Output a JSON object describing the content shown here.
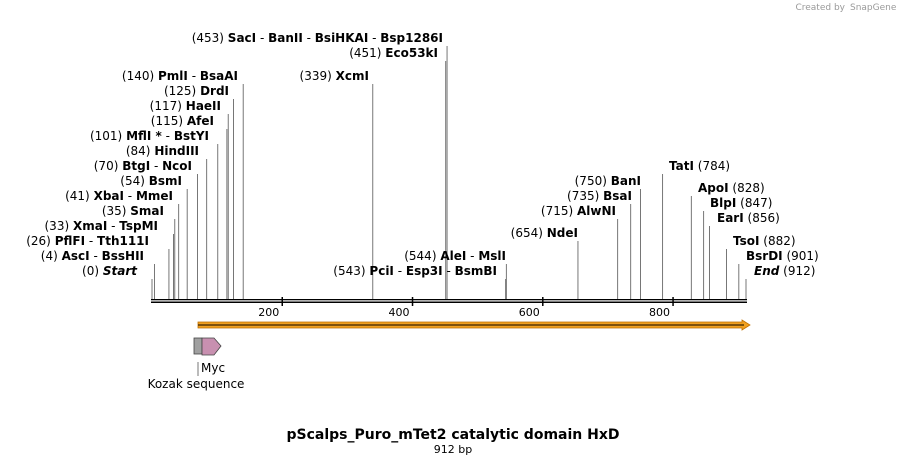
{
  "credit": {
    "prefix": "Created by",
    "brand": "SnapGene"
  },
  "map": {
    "length": 912,
    "title": "pScalps_Puro_mTet2 catalytic domain HxD",
    "length_label": "912 bp",
    "axis_ticks": [
      200,
      400,
      600,
      800
    ]
  },
  "sites": [
    {
      "id": "start",
      "pos": 0,
      "pos_label": "(0)",
      "names": [
        "Start"
      ],
      "italic": true,
      "line_at": 0
    },
    {
      "id": "ascI",
      "pos": 4,
      "pos_label": "(4)",
      "names": [
        "AscI",
        "BssHII"
      ],
      "line_at": 4
    },
    {
      "id": "pflfI",
      "pos": 26,
      "pos_label": "(26)",
      "names": [
        "PflFI",
        "Tth111I"
      ],
      "line_at": 26
    },
    {
      "id": "xmaI",
      "pos": 33,
      "pos_label": "(33)",
      "names": [
        "XmaI",
        "TspMI"
      ],
      "line_at": 33
    },
    {
      "id": "smaI",
      "pos": 35,
      "pos_label": "(35)",
      "names": [
        "SmaI"
      ],
      "line_at": 35
    },
    {
      "id": "xbaI",
      "pos": 41,
      "pos_label": "(41)",
      "names": [
        "XbaI",
        "MmeI"
      ],
      "line_at": 41
    },
    {
      "id": "bsmI",
      "pos": 54,
      "pos_label": "(54)",
      "names": [
        "BsmI"
      ],
      "line_at": 54
    },
    {
      "id": "btgI",
      "pos": 70,
      "pos_label": "(70)",
      "names": [
        "BtgI",
        "NcoI"
      ],
      "line_at": 70
    },
    {
      "id": "hindIII",
      "pos": 84,
      "pos_label": "(84)",
      "names": [
        "HindIII"
      ],
      "line_at": 84
    },
    {
      "id": "mflI",
      "pos": 101,
      "pos_label": "(101)",
      "names": [
        "MflI *",
        "BstYI"
      ],
      "line_at": 101
    },
    {
      "id": "afeI",
      "pos": 115,
      "pos_label": "(115)",
      "names": [
        "AfeI"
      ],
      "line_at": 115
    },
    {
      "id": "haeII",
      "pos": 117,
      "pos_label": "(117)",
      "names": [
        "HaeII"
      ],
      "line_at": 117
    },
    {
      "id": "drdI",
      "pos": 125,
      "pos_label": "(125)",
      "names": [
        "DrdI"
      ],
      "line_at": 125
    },
    {
      "id": "pmlI",
      "pos": 140,
      "pos_label": "(140)",
      "names": [
        "PmlI",
        "BsaAI"
      ],
      "line_at": 140
    },
    {
      "id": "xcmI",
      "pos": 339,
      "pos_label": "(339)",
      "names": [
        "XcmI"
      ],
      "line_at": 339
    },
    {
      "id": "eco53kI",
      "pos": 451,
      "pos_label": "(451)",
      "names": [
        "Eco53kI"
      ],
      "line_at": 451
    },
    {
      "id": "sacI",
      "pos": 453,
      "pos_label": "(453)",
      "names": [
        "SacI",
        "BanII",
        "BsiHKAI",
        "Bsp1286I"
      ],
      "line_at": 453
    },
    {
      "id": "pclI",
      "pos": 543,
      "pos_label": "(543)",
      "names": [
        "PciI",
        "Esp3I",
        "BsmBI"
      ],
      "line_at": 543
    },
    {
      "id": "aleI",
      "pos": 544,
      "pos_label": "(544)",
      "names": [
        "AleI",
        "MslI"
      ],
      "line_at": 544
    },
    {
      "id": "ndeI",
      "pos": 654,
      "pos_label": "(654)",
      "names": [
        "NdeI"
      ],
      "line_at": 654
    },
    {
      "id": "alwNI",
      "pos": 715,
      "pos_label": "(715)",
      "names": [
        "AlwNI"
      ],
      "line_at": 715
    },
    {
      "id": "bsaI",
      "pos": 735,
      "pos_label": "(735)",
      "names": [
        "BsaI"
      ],
      "line_at": 735
    },
    {
      "id": "banI",
      "pos": 750,
      "pos_label": "(750)",
      "names": [
        "BanI"
      ],
      "line_at": 750
    },
    {
      "id": "tatI",
      "pos": 784,
      "pos_label": "(784)",
      "names": [
        "TatI"
      ],
      "line_at": 784
    },
    {
      "id": "apoI",
      "pos": 828,
      "pos_label": "(828)",
      "names": [
        "ApoI"
      ],
      "line_at": 828
    },
    {
      "id": "blpI",
      "pos": 847,
      "pos_label": "(847)",
      "names": [
        "BlpI"
      ],
      "line_at": 847
    },
    {
      "id": "earI",
      "pos": 856,
      "pos_label": "(856)",
      "names": [
        "EarI"
      ],
      "line_at": 856
    },
    {
      "id": "tsoI",
      "pos": 882,
      "pos_label": "(882)",
      "names": [
        "TsoI"
      ],
      "line_at": 882
    },
    {
      "id": "bsrDI",
      "pos": 901,
      "pos_label": "(901)",
      "names": [
        "BsrDI"
      ],
      "line_at": 901
    },
    {
      "id": "end",
      "pos": 912,
      "pos_label": "(912)",
      "names": [
        "End"
      ],
      "italic": true,
      "line_at": 912
    }
  ],
  "features": [
    {
      "id": "orf",
      "type": "arrow",
      "start": 72,
      "end": 912,
      "color": "#f0a020",
      "border": "#c07000"
    },
    {
      "id": "kozak",
      "type": "box",
      "start": 60,
      "end": 70,
      "label": "Kozak sequence",
      "color": "#a0a0a0"
    },
    {
      "id": "myc",
      "type": "arrow-small",
      "start": 70,
      "end": 100,
      "label": "Myc",
      "color": "#c890b0"
    }
  ]
}
